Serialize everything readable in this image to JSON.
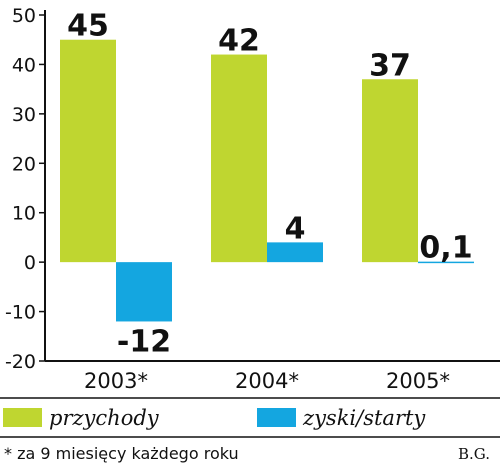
{
  "chart_data": {
    "type": "bar",
    "categories": [
      "2003*",
      "2004*",
      "2005*"
    ],
    "series": [
      {
        "name": "przychody",
        "values": [
          45,
          42,
          37
        ],
        "color": "#bfd630"
      },
      {
        "name": "zyski/starty",
        "values": [
          -12,
          4,
          0.1
        ],
        "color": "#14a6e0"
      }
    ],
    "data_labels": [
      [
        "45",
        "42",
        "37"
      ],
      [
        "-12",
        "4",
        "0,1"
      ]
    ],
    "ylim": [
      -20,
      50
    ],
    "yticks": [
      "50",
      "40",
      "30",
      "20",
      "10",
      "0",
      "-10",
      "-20"
    ],
    "grid": false,
    "legend": "bottom"
  },
  "footnote": "* za 9 miesięcy każdego roku",
  "credit": "B.G."
}
